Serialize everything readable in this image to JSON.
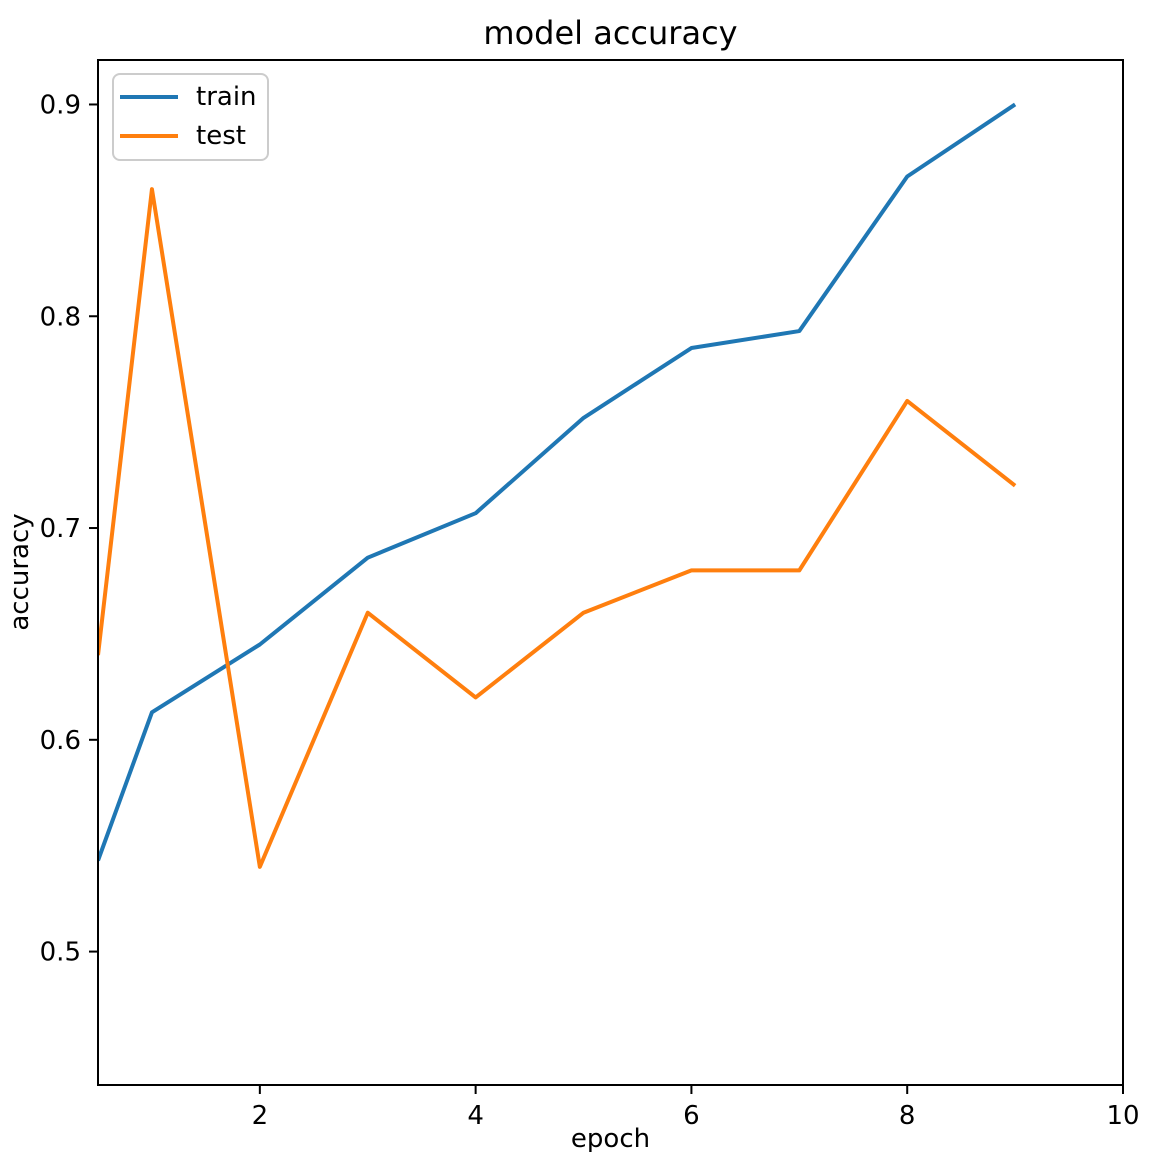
{
  "chart_data": {
    "type": "line",
    "title": "model accuracy",
    "xlabel": "epoch",
    "ylabel": "accuracy",
    "x": [
      0.5,
      1,
      2,
      3,
      4,
      5,
      6,
      7,
      8,
      9
    ],
    "series": [
      {
        "name": "train",
        "color": "#1f77b4",
        "values": [
          0.543,
          0.613,
          0.645,
          0.686,
          0.707,
          0.752,
          0.785,
          0.793,
          0.866,
          0.9
        ]
      },
      {
        "name": "test",
        "color": "#ff7f0e",
        "values": [
          0.64,
          0.86,
          0.54,
          0.66,
          0.62,
          0.66,
          0.68,
          0.68,
          0.76,
          0.72
        ]
      }
    ],
    "xlim": [
      0.5,
      10
    ],
    "ylim": [
      0.437,
      0.921
    ],
    "xticks": [
      2,
      4,
      6,
      8,
      10
    ],
    "yticks": [
      0.5,
      0.6,
      0.7,
      0.8,
      0.9
    ],
    "grid": false,
    "legend_position": "upper left",
    "colors": {
      "spine": "#000000",
      "tick_label": "#000000",
      "legend_border": "#cccccc",
      "background": "#ffffff"
    }
  }
}
